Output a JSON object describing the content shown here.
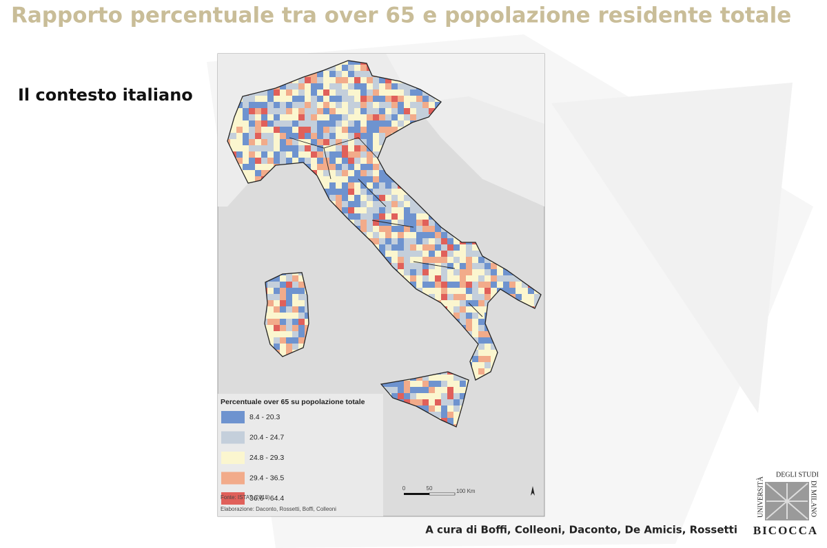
{
  "header": {
    "title": "Rapporto percentuale tra over 65 e popolazione residente totale",
    "subtitle": "Il contesto italiano"
  },
  "map": {
    "legend": {
      "title": "Percentuale over 65 su popolazione totale",
      "items": [
        {
          "label": "8.4 - 20.3",
          "color": "#6e93cf"
        },
        {
          "label": "20.4 - 24.7",
          "color": "#c4cfdb"
        },
        {
          "label": "24.8 - 29.3",
          "color": "#fbf6cf"
        },
        {
          "label": "29.4 - 36.5",
          "color": "#f2ab8a"
        },
        {
          "label": "36.6 - 64.4",
          "color": "#e0605a"
        }
      ]
    },
    "source": "Fonte: ISTAT (2018)",
    "credits": "Elaborazione: Daconto, Rossetti, Boffi, Colleoni",
    "scale": [
      "0",
      "50",
      "100 Km"
    ]
  },
  "footer": {
    "authors": "A cura di Boffi, Colleoni, Daconto, De Amicis, Rossetti",
    "logo": {
      "line1": "UNIVERSITÀ",
      "line2": "DEGLI STUDI",
      "line3": "DI MILANO",
      "name": "BICOCCA"
    }
  }
}
